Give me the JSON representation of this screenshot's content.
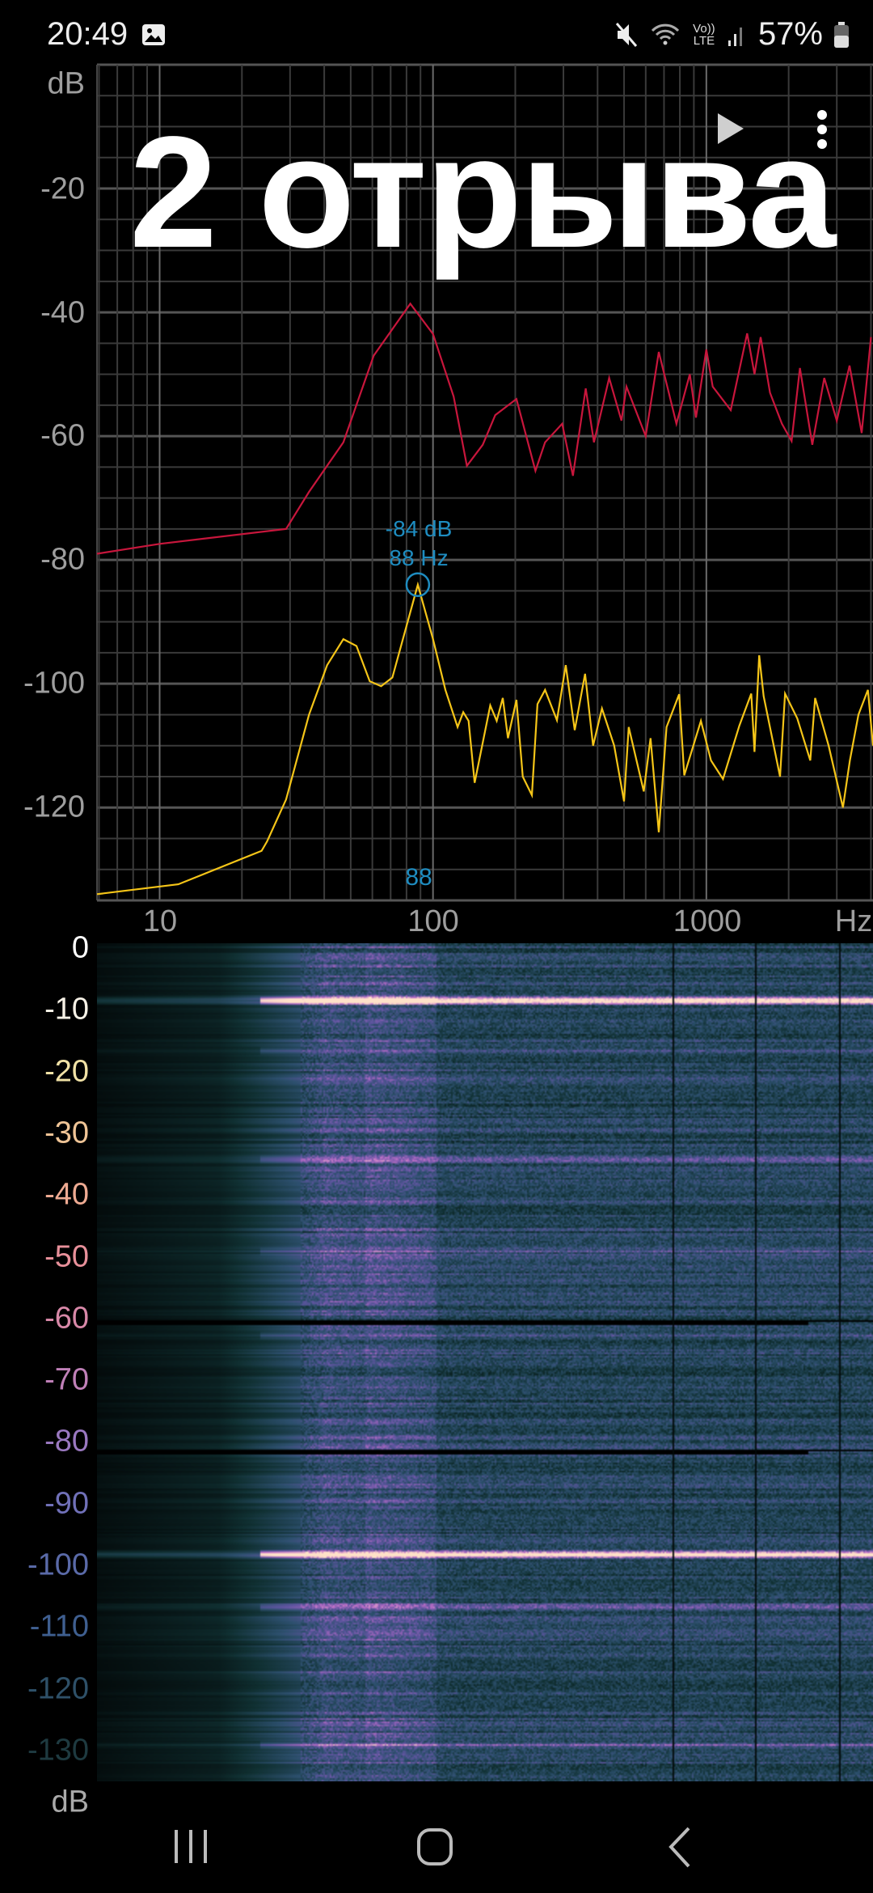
{
  "status_bar": {
    "time": "20:49",
    "battery": "57%",
    "icons": [
      "gallery-icon",
      "mute-icon",
      "wifi-icon",
      "volte-icon",
      "signal-icon",
      "battery-icon"
    ],
    "volte_label": "Vo)) LTE"
  },
  "overlay_title": "2 отрыва",
  "toolbar": {
    "play_icon": "play-icon",
    "menu_icon": "more-vert-icon"
  },
  "spectrum": {
    "y_unit": "dB",
    "y_ticks": [
      "-20",
      "-40",
      "-60",
      "-80",
      "-100",
      "-120"
    ],
    "x_ticks": [
      "10",
      "100",
      "1000"
    ],
    "x_unit": "Hz",
    "marker": {
      "db_label": "-84 dB",
      "hz_label": "88 Hz",
      "axis_label": "88",
      "color": "#1e8cc0"
    }
  },
  "chart_data": {
    "type": "line",
    "x_scale": "log",
    "xlim": [
      5.9,
      4070
    ],
    "ylim": [
      -135,
      0
    ],
    "grid": true,
    "xlabel": "Hz",
    "ylabel": "dB",
    "series": [
      {
        "color": "#c8163c",
        "points": [
          [
            5.9,
            -79
          ],
          [
            10,
            -77.4
          ],
          [
            29,
            -75
          ],
          [
            35.2,
            -69
          ],
          [
            47,
            -61
          ],
          [
            60.7,
            -47
          ],
          [
            82.6,
            -38.6
          ],
          [
            100,
            -43.5
          ],
          [
            119,
            -53.6
          ],
          [
            133,
            -64.8
          ],
          [
            152,
            -61.4
          ],
          [
            169,
            -56.6
          ],
          [
            202,
            -54
          ],
          [
            237,
            -65.6
          ],
          [
            257,
            -61
          ],
          [
            297,
            -58
          ],
          [
            325,
            -66.4
          ],
          [
            362,
            -52.3
          ],
          [
            388,
            -61
          ],
          [
            441,
            -50.6
          ],
          [
            489,
            -57.5
          ],
          [
            510,
            -52
          ],
          [
            600,
            -60
          ],
          [
            670,
            -46.4
          ],
          [
            777,
            -58
          ],
          [
            870,
            -50
          ],
          [
            916,
            -57
          ],
          [
            1000,
            -46
          ],
          [
            1055,
            -52
          ],
          [
            1228,
            -55.8
          ],
          [
            1410,
            -43.4
          ],
          [
            1500,
            -50
          ],
          [
            1580,
            -44
          ],
          [
            1710,
            -53
          ],
          [
            1890,
            -58
          ],
          [
            2050,
            -60.8
          ],
          [
            2200,
            -49
          ],
          [
            2440,
            -61.4
          ],
          [
            2700,
            -50.6
          ],
          [
            3000,
            -57.5
          ],
          [
            3340,
            -48.6
          ],
          [
            3700,
            -59.5
          ],
          [
            4000,
            -44
          ]
        ]
      },
      {
        "color": "#f5c518",
        "points": [
          [
            5.9,
            -134
          ],
          [
            11.7,
            -132.4
          ],
          [
            23.6,
            -127
          ],
          [
            24.7,
            -125.5
          ],
          [
            29,
            -118.7
          ],
          [
            35.2,
            -105
          ],
          [
            41,
            -97
          ],
          [
            47,
            -92.8
          ],
          [
            52.5,
            -93.9
          ],
          [
            58.7,
            -99.6
          ],
          [
            64.6,
            -100.4
          ],
          [
            71,
            -99
          ],
          [
            88,
            -84
          ],
          [
            100,
            -92.8
          ],
          [
            111,
            -101
          ],
          [
            123,
            -107
          ],
          [
            129,
            -104.6
          ],
          [
            135,
            -106
          ],
          [
            142,
            -116
          ],
          [
            162,
            -103.5
          ],
          [
            171,
            -106
          ],
          [
            180,
            -102.3
          ],
          [
            188,
            -108.8
          ],
          [
            202,
            -102.6
          ],
          [
            213,
            -115
          ],
          [
            230,
            -118
          ],
          [
            241,
            -103.3
          ],
          [
            257,
            -101
          ],
          [
            284,
            -105.9
          ],
          [
            306,
            -97
          ],
          [
            330,
            -107.5
          ],
          [
            360,
            -98.4
          ],
          [
            385,
            -110
          ],
          [
            415,
            -104
          ],
          [
            460,
            -110
          ],
          [
            500,
            -119
          ],
          [
            520,
            -107
          ],
          [
            590,
            -117.4
          ],
          [
            625,
            -108.8
          ],
          [
            670,
            -124
          ],
          [
            715,
            -107
          ],
          [
            795,
            -101.7
          ],
          [
            830,
            -114.8
          ],
          [
            955,
            -106
          ],
          [
            1040,
            -112.4
          ],
          [
            1150,
            -115.4
          ],
          [
            1320,
            -106.8
          ],
          [
            1460,
            -101.6
          ],
          [
            1500,
            -111
          ],
          [
            1560,
            -95.4
          ],
          [
            1620,
            -102
          ],
          [
            1860,
            -115
          ],
          [
            1940,
            -101.6
          ],
          [
            2150,
            -105.6
          ],
          [
            2400,
            -112.4
          ],
          [
            2500,
            -102.3
          ],
          [
            2800,
            -110
          ],
          [
            3160,
            -120
          ],
          [
            3350,
            -112.4
          ],
          [
            3600,
            -105
          ],
          [
            3900,
            -101
          ],
          [
            4070,
            -110
          ]
        ]
      }
    ],
    "peak_marker": {
      "x": 88,
      "y": -84
    }
  },
  "spectrogram": {
    "y_ticks": [
      {
        "label": "0",
        "color": "#ffffff"
      },
      {
        "label": "-10",
        "color": "#f6f1e6"
      },
      {
        "label": "-20",
        "color": "#f1e2a6"
      },
      {
        "label": "-30",
        "color": "#efc496"
      },
      {
        "label": "-40",
        "color": "#eeaa92"
      },
      {
        "label": "-50",
        "color": "#e8909a"
      },
      {
        "label": "-60",
        "color": "#d888a8"
      },
      {
        "label": "-70",
        "color": "#c080b8"
      },
      {
        "label": "-80",
        "color": "#9a78c0"
      },
      {
        "label": "-90",
        "color": "#7070b8"
      },
      {
        "label": "-100",
        "color": "#5a6aa8"
      },
      {
        "label": "-110",
        "color": "#3f5f90"
      },
      {
        "label": "-120",
        "color": "#2e5068"
      },
      {
        "label": "-130",
        "color": "#1e3a40"
      }
    ],
    "unit": "dB"
  },
  "nav_bar": {
    "icons": [
      "recent-apps-icon",
      "home-icon",
      "back-icon"
    ]
  }
}
